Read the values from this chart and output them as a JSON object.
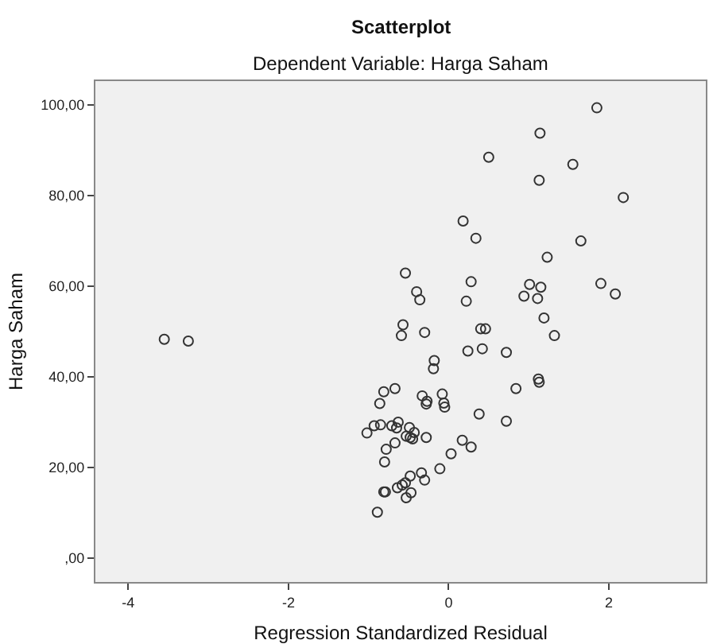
{
  "chart_data": {
    "type": "scatter",
    "title": "Scatterplot",
    "subtitle": "Dependent Variable: Harga Saham",
    "xlabel": "Regression Standardized Residual",
    "ylabel": "Harga Saham",
    "xlim": [
      -4.41,
      3.21
    ],
    "ylim": [
      -5.3,
      105.3
    ],
    "xticks": [
      -4,
      -2,
      0,
      2
    ],
    "yticks": [
      {
        "value": 0,
        "label": ",00"
      },
      {
        "value": 20,
        "label": "20,00"
      },
      {
        "value": 40,
        "label": "40,00"
      },
      {
        "value": 60,
        "label": "60,00"
      },
      {
        "value": 80,
        "label": "80,00"
      },
      {
        "value": 100,
        "label": "100,00"
      }
    ],
    "grid": false,
    "marker": "circle",
    "series": [
      {
        "color": "#333333",
        "x": [
          -3.55,
          -3.25,
          1.85,
          1.14,
          0.5,
          1.55,
          1.13,
          2.18,
          0.18,
          0.34,
          1.65,
          1.23,
          -0.54,
          0.28,
          1.01,
          1.15,
          1.9,
          -0.4,
          -0.36,
          0.22,
          0.94,
          1.11,
          2.08,
          1.19,
          1.32,
          -0.57,
          -0.59,
          -0.3,
          0.4,
          0.46,
          0.24,
          0.42,
          0.72,
          -0.18,
          -0.19,
          -0.81,
          -0.67,
          -0.86,
          -0.33,
          -0.27,
          -0.28,
          -0.08,
          -0.06,
          -0.05,
          0.84,
          1.12,
          1.13,
          0.38,
          0.72,
          -1.02,
          -0.93,
          -0.85,
          -0.71,
          -0.65,
          -0.63,
          -0.49,
          -0.43,
          -0.53,
          -0.48,
          -0.45,
          -0.28,
          -0.67,
          -0.78,
          -0.8,
          0.17,
          0.28,
          0.03,
          -0.11,
          -0.34,
          -0.3,
          -0.48,
          -0.54,
          -0.58,
          -0.64,
          -0.81,
          -0.79,
          -0.47,
          -0.53,
          -0.89
        ],
        "values": [
          48.3,
          47.9,
          99.4,
          93.8,
          88.5,
          86.9,
          83.4,
          79.6,
          74.4,
          70.6,
          70.0,
          66.4,
          62.9,
          61.0,
          60.4,
          59.8,
          60.6,
          58.8,
          57.0,
          56.7,
          57.8,
          57.3,
          58.3,
          53.0,
          49.1,
          51.5,
          49.1,
          49.8,
          50.6,
          50.6,
          45.7,
          46.2,
          45.4,
          43.6,
          41.8,
          36.7,
          37.4,
          34.1,
          35.8,
          34.6,
          34.0,
          36.2,
          34.2,
          33.3,
          37.4,
          39.5,
          38.8,
          31.8,
          30.2,
          27.6,
          29.2,
          29.4,
          29.2,
          28.7,
          30.0,
          28.8,
          27.7,
          26.9,
          26.6,
          26.3,
          26.6,
          25.4,
          24.0,
          21.2,
          26.0,
          24.5,
          23.0,
          19.7,
          18.8,
          17.2,
          18.1,
          16.6,
          16.1,
          15.5,
          14.6,
          14.6,
          14.4,
          13.3,
          10.1
        ]
      }
    ]
  }
}
